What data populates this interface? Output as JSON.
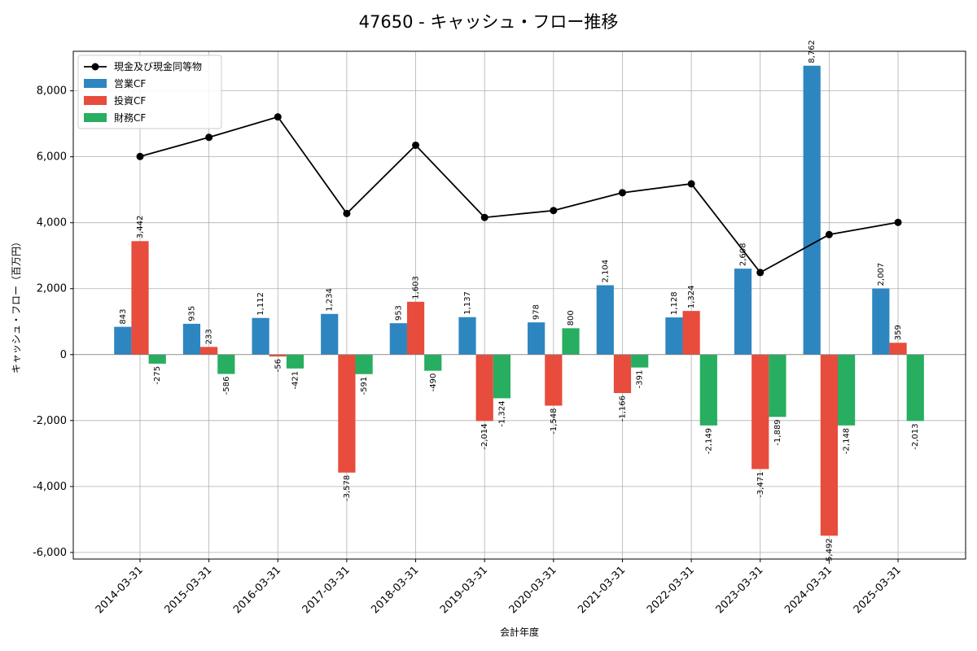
{
  "chart_data": {
    "type": "bar",
    "title": "47650 - キャッシュ・フロー推移",
    "xlabel": "会計年度",
    "ylabel": "キャッシュ・フロー（百万円）",
    "categories": [
      "2014-03-31",
      "2015-03-31",
      "2016-03-31",
      "2017-03-31",
      "2018-03-31",
      "2019-03-31",
      "2020-03-31",
      "2021-03-31",
      "2022-03-31",
      "2023-03-31",
      "2024-03-31",
      "2025-03-31"
    ],
    "ylim": [
      -6200,
      9200
    ],
    "yticks": [
      -6000,
      -4000,
      -2000,
      0,
      2000,
      4000,
      6000,
      8000
    ],
    "ytick_labels": [
      "-6,000",
      "-4,000",
      "-2,000",
      "0",
      "2,000",
      "4,000",
      "6,000",
      "8,000"
    ],
    "grid": true,
    "legend_position": "top-left",
    "series": [
      {
        "name": "営業CF",
        "kind": "bar",
        "color": "#2e86c1",
        "values": [
          843,
          935,
          1112,
          1234,
          953,
          1137,
          978,
          2104,
          1128,
          2608,
          8762,
          2007
        ],
        "labels": [
          "843",
          "935",
          "1,112",
          "1,234",
          "953",
          "1,137",
          "978",
          "2,104",
          "1,128",
          "2,608",
          "8,762",
          "2,007"
        ]
      },
      {
        "name": "投資CF",
        "kind": "bar",
        "color": "#e74c3c",
        "values": [
          3442,
          233,
          -56,
          -3578,
          1603,
          -2014,
          -1548,
          -1166,
          1324,
          -3471,
          -5492,
          359
        ],
        "labels": [
          "3,442",
          "233",
          "-56",
          "-3,578",
          "1,603",
          "-2,014",
          "-1,548",
          "-1,166",
          "1,324",
          "-3,471",
          "-5,492",
          "359"
        ]
      },
      {
        "name": "財務CF",
        "kind": "bar",
        "color": "#27ae60",
        "values": [
          -275,
          -586,
          -421,
          -591,
          -490,
          -1324,
          800,
          -391,
          -2149,
          -1889,
          -2148,
          -2013
        ],
        "labels": [
          "-275",
          "-586",
          "-421",
          "-591",
          "-490",
          "-1,324",
          "800",
          "-391",
          "-2,149",
          "-1,889",
          "-2,148",
          "-2,013"
        ]
      },
      {
        "name": "現金及び現金同等物",
        "kind": "line",
        "color": "#000000",
        "values": [
          6010,
          6590,
          7210,
          4280,
          6350,
          4160,
          4370,
          4910,
          5180,
          2490,
          3640,
          4010
        ]
      }
    ]
  }
}
